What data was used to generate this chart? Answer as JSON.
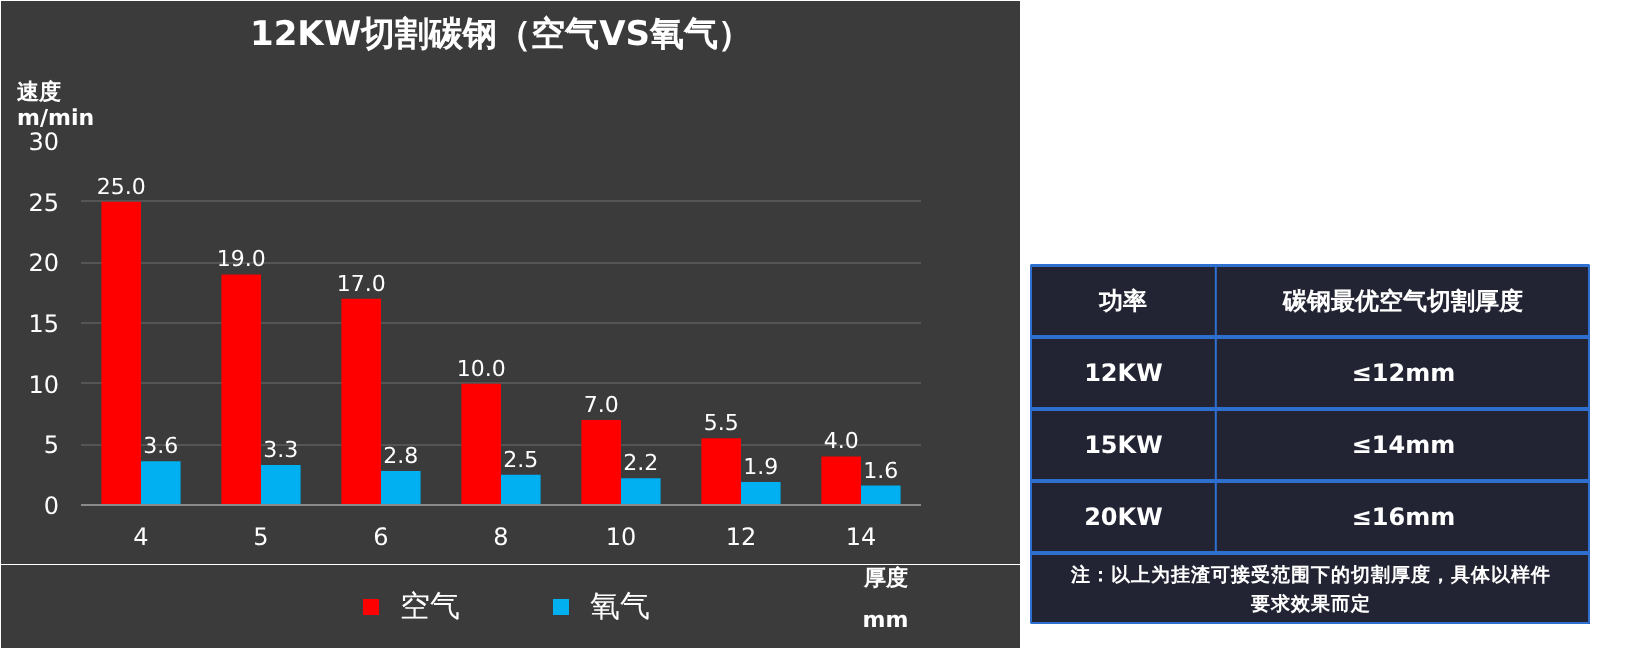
{
  "chart_data": [
    {
      "type": "bar",
      "title": "12KW切割碳钢（空气VS氧气）",
      "ylabel": "速度\nm/min",
      "xlabel": "厚度\nmm",
      "categories": [
        "4",
        "5",
        "6",
        "8",
        "10",
        "12",
        "14"
      ],
      "series": [
        {
          "name": "空气",
          "color": "#ff0000",
          "values": [
            25,
            19,
            17,
            10,
            7,
            5.5,
            4
          ],
          "value_labels": [
            "25.0",
            "19.0",
            "17.0",
            "10.0",
            "7.0",
            "5.5",
            "4.0"
          ]
        },
        {
          "name": "氧气",
          "color": "#00b0f0",
          "values": [
            3.6,
            3.3,
            2.8,
            2.5,
            2.2,
            1.9,
            1.6
          ],
          "value_labels": [
            "3.6",
            "3.3",
            "2.8",
            "2.5",
            "2.2",
            "1.9",
            "1.6"
          ]
        }
      ],
      "ylim": [
        0,
        30
      ],
      "yticks": [
        0,
        5,
        10,
        15,
        20,
        25,
        30
      ],
      "grid": "y",
      "legend": "bottom"
    },
    {
      "type": "other",
      "annotations": [
        "功率",
        "碳钢最优空气切割厚度",
        "12KW",
        "≤12mm",
        "15KW",
        "≤14mm",
        "20KW",
        "≤16mm",
        "注：以上为挂渣可接受范围下的切割厚度，具体以样件",
        "要求效果而定"
      ]
    }
  ]
}
